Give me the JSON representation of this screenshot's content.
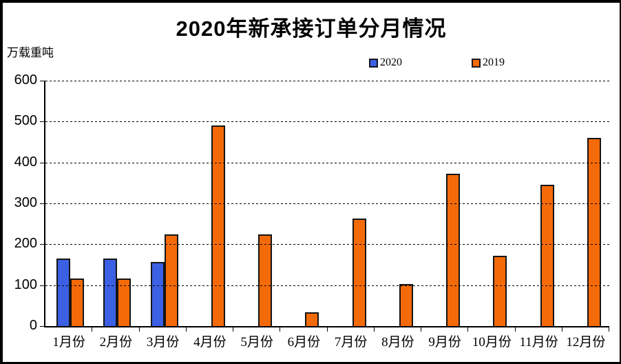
{
  "title": "2020年新承接订单分月情况",
  "chart_data": {
    "type": "bar",
    "title": "2020年新承接订单分月情况",
    "ylabel": "万载重吨",
    "categories": [
      "1月份",
      "2月份",
      "3月份",
      "4月份",
      "5月份",
      "6月份",
      "7月份",
      "8月份",
      "9月份",
      "10月份",
      "11月份",
      "12月份"
    ],
    "series": [
      {
        "name": "2020",
        "color": "#3C60E4",
        "values": [
          165,
          165,
          156,
          null,
          null,
          null,
          null,
          null,
          null,
          null,
          null,
          null
        ]
      },
      {
        "name": "2019",
        "color": "#F56A08",
        "values": [
          117,
          117,
          224,
          490,
          224,
          33,
          263,
          103,
          373,
          172,
          345,
          460
        ]
      }
    ],
    "ylim": [
      0,
      600
    ],
    "yticks": [
      0,
      100,
      200,
      300,
      400,
      500,
      600
    ],
    "grid": "dashed-horizontal",
    "legend_position": "top"
  }
}
